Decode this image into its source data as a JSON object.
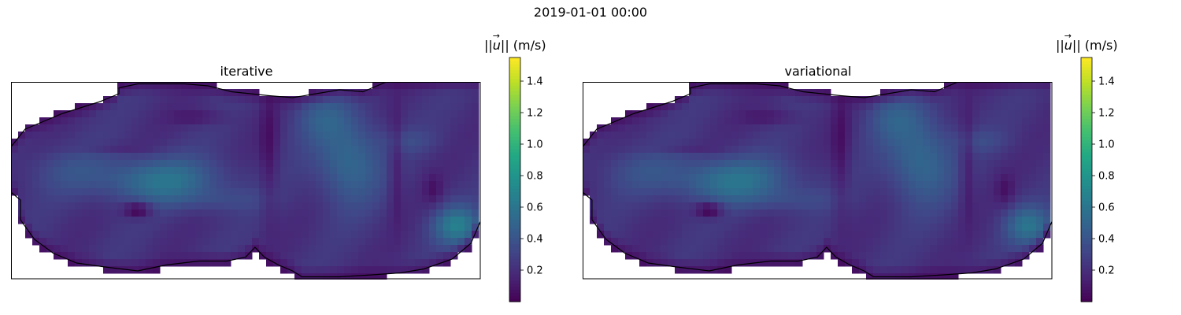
{
  "suptitle": "2019-01-01 00:00",
  "colorbar": {
    "label": "||⃗u|| (m/s)",
    "label_text_prefix": "||",
    "label_symbol": "u",
    "label_text_suffix": "|| (m/s)",
    "ticks": [
      "0.2",
      "0.4",
      "0.6",
      "0.8",
      "1.0",
      "1.2",
      "1.4"
    ],
    "tick_values": [
      0.2,
      0.4,
      0.6,
      0.8,
      1.0,
      1.2,
      1.4
    ],
    "vmin": 0.0,
    "vmax": 1.55,
    "colormap": "viridis"
  },
  "chart_data": [
    {
      "type": "heatmap",
      "title": "iterative",
      "colorbar_label": "||⃗u|| (m/s)",
      "value_range": [
        0.0,
        1.55
      ],
      "grid": false,
      "features": [
        {
          "description_hidden": true,
          "center": [
            0.32,
            0.52
          ],
          "peak": 0.62
        },
        {
          "center": [
            0.72,
            0.42
          ],
          "peak": 0.58
        },
        {
          "center": [
            0.95,
            0.72
          ],
          "peak": 0.65
        },
        {
          "center": [
            0.27,
            0.65
          ],
          "min": 0.05
        }
      ]
    },
    {
      "type": "heatmap",
      "title": "variational",
      "colorbar_label": "||⃗u|| (m/s)",
      "value_range": [
        0.0,
        1.55
      ],
      "grid": false
    }
  ]
}
